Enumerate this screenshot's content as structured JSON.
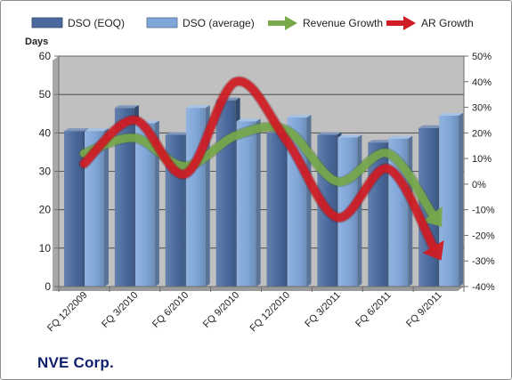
{
  "company": "NVE Corp.",
  "chart_data": {
    "type": "bar",
    "categories": [
      "FQ 12/2009",
      "FQ 3/2010",
      "FQ 6/2010",
      "FQ 9/2010",
      "FQ 12/2010",
      "FQ 3/2011",
      "FQ 6/2011",
      "FQ 9/2011"
    ],
    "series": [
      {
        "name": "DSO (EOQ)",
        "type": "bar",
        "axis": "left",
        "color": "#4a6a9e",
        "values": [
          40.5,
          46.5,
          39.5,
          48.5,
          40,
          39.5,
          37.5,
          41.3
        ]
      },
      {
        "name": "DSO (average)",
        "type": "bar",
        "axis": "left",
        "color": "#7fa6d8",
        "values": [
          40.5,
          42.5,
          46.5,
          43,
          44,
          38.8,
          38.5,
          44.5
        ]
      },
      {
        "name": "Revenue Growth",
        "type": "line",
        "axis": "right",
        "unit": "%",
        "color": "#77a94a",
        "values": [
          12,
          18,
          7,
          19,
          21,
          1,
          12,
          -15
        ]
      },
      {
        "name": "AR Growth",
        "type": "line",
        "axis": "right",
        "unit": "%",
        "color": "#d01c24",
        "values": [
          8,
          25,
          4,
          40,
          17,
          -13,
          6,
          -28
        ]
      }
    ],
    "ylabel": "Days",
    "ylim": [
      0,
      60
    ],
    "yticks": [
      0,
      10,
      20,
      30,
      40,
      50,
      60
    ],
    "y2lim": [
      -40,
      50
    ],
    "y2ticks": [
      -40,
      -30,
      -20,
      -10,
      0,
      10,
      20,
      30,
      40,
      50
    ],
    "y2tick_format": "%",
    "legend_position": "top",
    "grid": true,
    "background": "#c0c0c0"
  }
}
